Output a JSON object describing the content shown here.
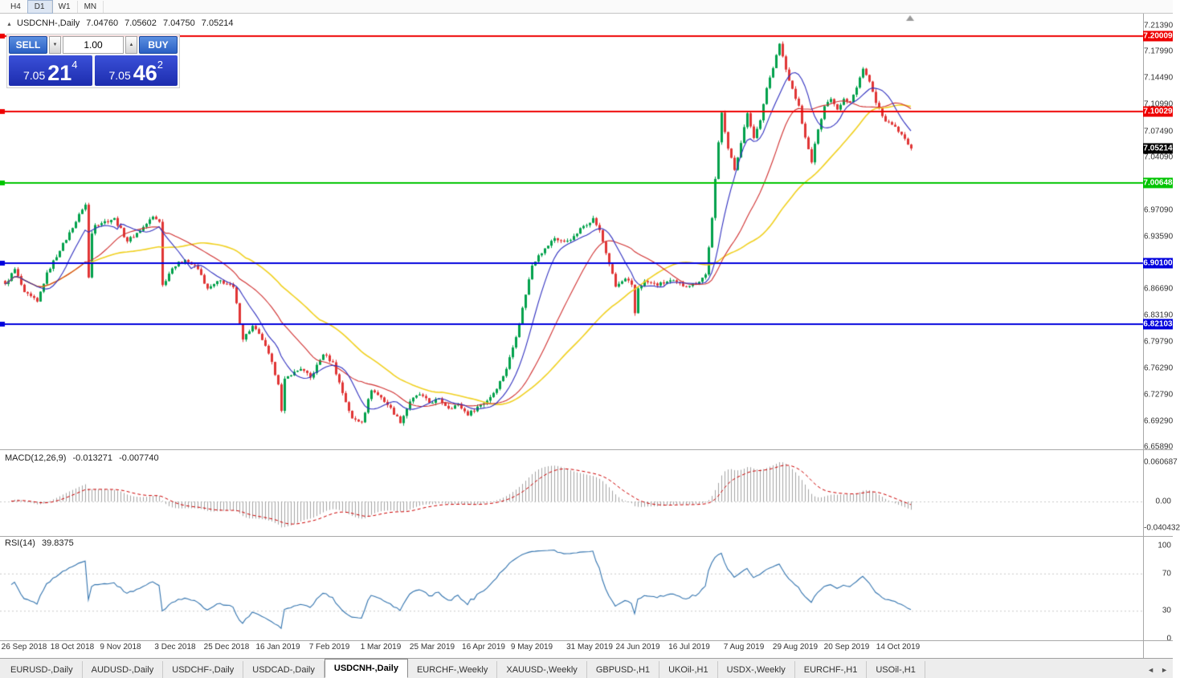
{
  "toolbar": {
    "timeframes": [
      "H4",
      "D1",
      "W1",
      "MN"
    ],
    "active": "D1"
  },
  "chart_title": {
    "symbol": "USDCNH-,Daily",
    "open": "7.04760",
    "high": "7.05602",
    "low": "7.04750",
    "close": "7.05214"
  },
  "trade_panel": {
    "sell_label": "SELL",
    "buy_label": "BUY",
    "volume": "1.00",
    "sell_quote": {
      "prefix": "7.05",
      "big": "21",
      "sup": "4"
    },
    "buy_quote": {
      "prefix": "7.05",
      "big": "46",
      "sup": "2"
    }
  },
  "indicators": {
    "macd": {
      "name": "MACD(12,26,9)",
      "main": "-0.013271",
      "signal": "-0.007740"
    },
    "rsi": {
      "name": "RSI(14)",
      "value": "39.8375"
    }
  },
  "icons": {
    "volume_down": "▼",
    "volume_up": "▲",
    "title_marker": "▲",
    "tab_scroll_left": "◄",
    "tab_scroll_right": "►"
  },
  "tabs": {
    "items": [
      "EURUSD-,Daily",
      "AUDUSD-,Daily",
      "USDCHF-,Daily",
      "USDCAD-,Daily",
      "USDCNH-,Daily",
      "EURCHF-,Weekly",
      "XAUUSD-,Weekly",
      "GBPUSD-,H1",
      "UKOil-,H1",
      "USDX-,Weekly",
      "EURCHF-,H1",
      "USOil-,H1"
    ],
    "active_index": 4
  },
  "chart_data": {
    "type": "candlestick",
    "symbol": "USDCNH",
    "timeframe": "Daily",
    "ohlc_line": {
      "open": 7.0476,
      "high": 7.05602,
      "low": 7.0475,
      "close": 7.05214
    },
    "candle_count": 283,
    "last_close": 7.05214,
    "jitter": 0.005,
    "up_color": "#00a14b",
    "down_color": "#e03535",
    "price_axis": {
      "top": 7.2298,
      "bottom": 6.6557,
      "labels": [
        "7.21390",
        "7.17990",
        "7.14490",
        "7.10990",
        "7.07490",
        "7.04090",
        "6.97090",
        "6.93590",
        "6.86690",
        "6.83190",
        "6.79790",
        "6.76290",
        "6.72790",
        "6.69290",
        "6.65890"
      ]
    },
    "hlines": [
      {
        "price": 7.20009,
        "label": "7.20009",
        "color": "#ee0000"
      },
      {
        "price": 7.10029,
        "label": "7.10029",
        "color": "#ee0000"
      },
      {
        "price": 7.00648,
        "label": "7.00648",
        "color": "#00c400"
      },
      {
        "price": 6.901,
        "label": "6.90100",
        "color": "#0000dd"
      },
      {
        "price": 6.82103,
        "label": "6.82103",
        "color": "#0000dd"
      }
    ],
    "current_price": {
      "price": 7.05214,
      "label": "7.05214",
      "color": "#000000"
    },
    "moving_averages": [
      {
        "period": 10,
        "color": "#2f2fbf"
      },
      {
        "period": 25,
        "color": "#d03030"
      },
      {
        "period": 50,
        "color": "#f0d020"
      }
    ],
    "macd_panel": {
      "max_value": 0.060687,
      "hist_color": "#a3a3a3",
      "signal_color": "#cc0000",
      "axis": [
        {
          "v": 0.060687,
          "label": "0.060687"
        },
        {
          "v": 0,
          "label": "0.00"
        },
        {
          "v": -0.040432,
          "label": "-0.040432"
        }
      ]
    },
    "rsi_panel": {
      "line_color": "#3273ae",
      "dotted": [
        70,
        30
      ],
      "axis": [
        {
          "v": 100,
          "label": "100"
        },
        {
          "v": 70,
          "label": "70"
        },
        {
          "v": 30,
          "label": "30"
        },
        {
          "v": 0,
          "label": "0"
        }
      ]
    },
    "time_axis": [
      {
        "i": 6,
        "label": "26 Sep 2018"
      },
      {
        "i": 21,
        "label": "18 Oct 2018"
      },
      {
        "i": 36,
        "label": "9 Nov 2018"
      },
      {
        "i": 53,
        "label": "3 Dec 2018"
      },
      {
        "i": 69,
        "label": "25 Dec 2018"
      },
      {
        "i": 85,
        "label": "16 Jan 2019"
      },
      {
        "i": 101,
        "label": "7 Feb 2019"
      },
      {
        "i": 117,
        "label": "1 Mar 2019"
      },
      {
        "i": 133,
        "label": "25 Mar 2019"
      },
      {
        "i": 149,
        "label": "16 Apr 2019"
      },
      {
        "i": 164,
        "label": "9 May 2019"
      },
      {
        "i": 182,
        "label": "31 May 2019"
      },
      {
        "i": 197,
        "label": "24 Jun 2019"
      },
      {
        "i": 213,
        "label": "16 Jul 2019"
      },
      {
        "i": 230,
        "label": "7 Aug 2019"
      },
      {
        "i": 246,
        "label": "29 Aug 2019"
      },
      {
        "i": 262,
        "label": "20 Sep 2019"
      },
      {
        "i": 278,
        "label": "14 Oct 2019"
      }
    ],
    "price_path": [
      [
        0,
        6.873
      ],
      [
        3,
        6.893
      ],
      [
        6,
        6.862
      ],
      [
        10,
        6.85
      ],
      [
        13,
        6.888
      ],
      [
        17,
        6.918
      ],
      [
        21,
        6.948
      ],
      [
        24,
        6.972
      ],
      [
        25,
        6.978
      ],
      [
        26,
        6.882
      ],
      [
        27,
        6.94
      ],
      [
        28,
        6.952
      ],
      [
        31,
        6.956
      ],
      [
        34,
        6.96
      ],
      [
        38,
        6.93
      ],
      [
        42,
        6.944
      ],
      [
        46,
        6.962
      ],
      [
        48,
        6.956
      ],
      [
        49,
        6.872
      ],
      [
        52,
        6.895
      ],
      [
        56,
        6.906
      ],
      [
        60,
        6.893
      ],
      [
        63,
        6.867
      ],
      [
        67,
        6.878
      ],
      [
        71,
        6.869
      ],
      [
        74,
        6.801
      ],
      [
        77,
        6.818
      ],
      [
        80,
        6.8
      ],
      [
        83,
        6.77
      ],
      [
        85,
        6.742
      ],
      [
        86,
        6.706
      ],
      [
        87,
        6.748
      ],
      [
        89,
        6.754
      ],
      [
        92,
        6.762
      ],
      [
        95,
        6.75
      ],
      [
        99,
        6.781
      ],
      [
        102,
        6.77
      ],
      [
        105,
        6.73
      ],
      [
        108,
        6.696
      ],
      [
        111,
        6.692
      ],
      [
        114,
        6.734
      ],
      [
        117,
        6.724
      ],
      [
        120,
        6.71
      ],
      [
        123,
        6.691
      ],
      [
        126,
        6.719
      ],
      [
        129,
        6.728
      ],
      [
        132,
        6.717
      ],
      [
        135,
        6.722
      ],
      [
        138,
        6.71
      ],
      [
        141,
        6.715
      ],
      [
        144,
        6.701
      ],
      [
        147,
        6.712
      ],
      [
        150,
        6.72
      ],
      [
        153,
        6.736
      ],
      [
        156,
        6.762
      ],
      [
        158,
        6.79
      ],
      [
        160,
        6.822
      ],
      [
        162,
        6.86
      ],
      [
        164,
        6.898
      ],
      [
        166,
        6.912
      ],
      [
        168,
        6.92
      ],
      [
        171,
        6.934
      ],
      [
        174,
        6.929
      ],
      [
        177,
        6.936
      ],
      [
        180,
        6.95
      ],
      [
        183,
        6.96
      ],
      [
        185,
        6.944
      ],
      [
        188,
        6.9
      ],
      [
        190,
        6.87
      ],
      [
        193,
        6.88
      ],
      [
        195,
        6.872
      ],
      [
        196,
        6.835
      ],
      [
        197,
        6.868
      ],
      [
        199,
        6.877
      ],
      [
        203,
        6.872
      ],
      [
        207,
        6.878
      ],
      [
        211,
        6.871
      ],
      [
        215,
        6.874
      ],
      [
        218,
        6.886
      ],
      [
        220,
        6.96
      ],
      [
        222,
        7.06
      ],
      [
        223,
        7.1
      ],
      [
        225,
        7.052
      ],
      [
        227,
        7.024
      ],
      [
        229,
        7.06
      ],
      [
        231,
        7.098
      ],
      [
        233,
        7.066
      ],
      [
        235,
        7.09
      ],
      [
        237,
        7.132
      ],
      [
        239,
        7.158
      ],
      [
        241,
        7.19
      ],
      [
        243,
        7.156
      ],
      [
        245,
        7.13
      ],
      [
        247,
        7.108
      ],
      [
        249,
        7.066
      ],
      [
        251,
        7.034
      ],
      [
        253,
        7.078
      ],
      [
        255,
        7.108
      ],
      [
        257,
        7.118
      ],
      [
        259,
        7.104
      ],
      [
        261,
        7.118
      ],
      [
        263,
        7.113
      ],
      [
        265,
        7.132
      ],
      [
        267,
        7.158
      ],
      [
        269,
        7.14
      ],
      [
        271,
        7.112
      ],
      [
        273,
        7.094
      ],
      [
        275,
        7.086
      ],
      [
        277,
        7.08
      ],
      [
        279,
        7.07
      ],
      [
        281,
        7.058
      ],
      [
        282,
        7.05214
      ]
    ]
  }
}
